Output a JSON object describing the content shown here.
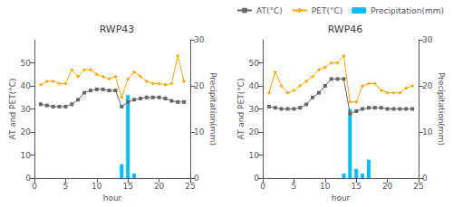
{
  "chart_data": [
    {
      "type": "line",
      "title": "RWP43",
      "xlabel": "hour",
      "ylabel": "AT and PET(°C)",
      "y2label": "Precipitation(mm)",
      "x": [
        1,
        2,
        3,
        4,
        5,
        6,
        7,
        8,
        9,
        10,
        11,
        12,
        13,
        14,
        15,
        16,
        17,
        18,
        19,
        20,
        21,
        22,
        23,
        24
      ],
      "series": [
        {
          "name": "AT(°C)",
          "color": "#666666",
          "marker": "square",
          "values": [
            32,
            31.5,
            31,
            31,
            31,
            32,
            34,
            37,
            38,
            38.5,
            38.5,
            38,
            38,
            31,
            33,
            34,
            34.5,
            35,
            35,
            35,
            34.5,
            33.5,
            33,
            33
          ]
        },
        {
          "name": "PET(°C)",
          "color": "#FFA500",
          "marker": "diamond",
          "values": [
            40.5,
            42,
            42,
            41,
            41,
            47,
            44,
            47,
            47,
            45,
            44,
            43,
            44,
            35,
            43,
            46,
            44,
            42,
            41,
            41,
            40.5,
            41,
            53,
            42
          ]
        },
        {
          "name": "Precipitation(mm)",
          "type": "bar",
          "axis": "y2",
          "color": "#00BFFF",
          "x": [
            14,
            15,
            16
          ],
          "values": [
            3,
            18,
            1
          ]
        }
      ],
      "xlim": [
        0,
        25
      ],
      "xticks": [
        0,
        5,
        10,
        15,
        20,
        25
      ],
      "ylim": [
        0,
        60
      ],
      "yticks": [
        0,
        10,
        20,
        30,
        40,
        50
      ],
      "y2lim": [
        0,
        30
      ],
      "y2ticks": [
        0,
        10,
        20,
        30
      ],
      "grid": false,
      "legend": "top right"
    },
    {
      "type": "line",
      "title": "RWP46",
      "xlabel": "hour",
      "ylabel": "AT and PET(°C)",
      "y2label": "Precipitation(mm)",
      "x": [
        1,
        2,
        3,
        4,
        5,
        6,
        7,
        8,
        9,
        10,
        11,
        12,
        13,
        14,
        15,
        16,
        17,
        18,
        19,
        20,
        21,
        22,
        23,
        24
      ],
      "series": [
        {
          "name": "AT(°C)",
          "color": "#666666",
          "marker": "square",
          "values": [
            31,
            30.5,
            30,
            30,
            30,
            30.5,
            32,
            35,
            37,
            40,
            43,
            43,
            43,
            28,
            29,
            30,
            30.5,
            30.5,
            30.5,
            30,
            30,
            30,
            30,
            30
          ]
        },
        {
          "name": "PET(°C)",
          "color": "#FFA500",
          "marker": "diamond",
          "values": [
            37,
            46,
            40,
            37,
            38,
            40,
            42,
            44,
            47,
            48,
            50,
            50,
            53,
            33,
            33,
            40,
            41,
            41,
            38,
            37,
            37,
            37,
            39,
            40
          ]
        },
        {
          "name": "Precipitation(mm)",
          "type": "bar",
          "axis": "y2",
          "color": "#00BFFF",
          "x": [
            13,
            14,
            15,
            16,
            17
          ],
          "values": [
            1,
            15,
            2,
            1,
            4
          ]
        }
      ],
      "xlim": [
        0,
        25
      ],
      "xticks": [
        0,
        5,
        10,
        15,
        20,
        25
      ],
      "ylim": [
        0,
        60
      ],
      "yticks": [
        0,
        10,
        20,
        30,
        40,
        50
      ],
      "y2lim": [
        0,
        30
      ],
      "y2ticks": [
        0,
        10,
        20,
        30
      ],
      "grid": false,
      "legend": "top right"
    }
  ]
}
